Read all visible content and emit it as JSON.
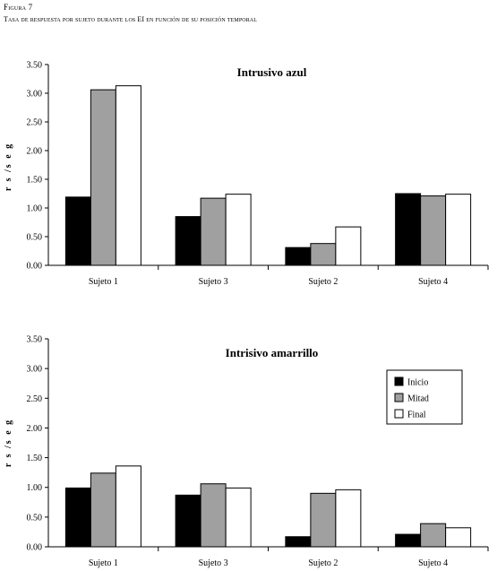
{
  "figure": {
    "label": "Figura 7",
    "caption": "Tasa de respuesta por sujeto durante los EI en función de su posición temporal"
  },
  "chart_data": [
    {
      "type": "bar",
      "title": "Intrusivo azul",
      "ylabel": "r s /s e g",
      "xlabel": "",
      "ylim": [
        0,
        3.5
      ],
      "yticks": [
        "0.00",
        "0.50",
        "1.00",
        "1.50",
        "2.00",
        "2.50",
        "3.00",
        "3.50"
      ],
      "categories": [
        "Sujeto 1",
        "Sujeto 3",
        "Sujeto 2",
        "Sujeto 4"
      ],
      "series": [
        {
          "name": "Inicio",
          "color": "#000000",
          "values": [
            1.19,
            0.85,
            0.31,
            1.25
          ]
        },
        {
          "name": "Mitad",
          "color": "#a0a0a0",
          "values": [
            3.06,
            1.17,
            0.38,
            1.21
          ]
        },
        {
          "name": "Final",
          "color": "#ffffff",
          "values": [
            3.13,
            1.24,
            0.67,
            1.24
          ]
        }
      ],
      "grid": false,
      "legend": "none"
    },
    {
      "type": "bar",
      "title": "Intrisivo amarrillo",
      "ylabel": "r s /s e g",
      "xlabel": "",
      "ylim": [
        0,
        3.5
      ],
      "yticks": [
        "0.00",
        "0.50",
        "1.00",
        "1.50",
        "2.00",
        "2.50",
        "3.00",
        "3.50"
      ],
      "categories": [
        "Sujeto 1",
        "Sujeto 3",
        "Sujeto 2",
        "Sujeto 4"
      ],
      "series": [
        {
          "name": "Inicio",
          "color": "#000000",
          "values": [
            0.99,
            0.87,
            0.17,
            0.21
          ]
        },
        {
          "name": "Mitad",
          "color": "#a0a0a0",
          "values": [
            1.24,
            1.06,
            0.9,
            0.39
          ]
        },
        {
          "name": "Final",
          "color": "#ffffff",
          "values": [
            1.36,
            0.99,
            0.96,
            0.32
          ]
        }
      ],
      "grid": false,
      "legend": "right"
    }
  ]
}
